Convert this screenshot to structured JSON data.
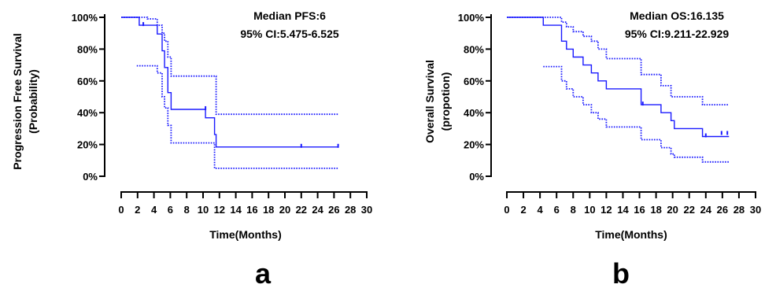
{
  "colors": {
    "curve": "#1a1aff",
    "axis": "#000000",
    "background": "#ffffff"
  },
  "chart_data": [
    {
      "type": "line",
      "panel_label": "a",
      "annotation": [
        "Median PFS:6",
        "95% CI:5.475-6.525"
      ],
      "xlabel": "Time(Months)",
      "ylabel": [
        "Progression Free Survival",
        "(Probability)"
      ],
      "xlim": [
        0,
        30
      ],
      "ylim": [
        0,
        100
      ],
      "x_ticks": [
        0,
        2,
        4,
        6,
        8,
        10,
        12,
        14,
        16,
        18,
        20,
        22,
        24,
        26,
        28,
        30
      ],
      "x_tick_labels": [
        "0",
        "2",
        "4",
        "6",
        "8",
        "10",
        "12",
        "14",
        "16",
        "18",
        "20",
        "22",
        "24",
        "26",
        "28",
        "30"
      ],
      "y_ticks": [
        0,
        20,
        40,
        60,
        80,
        100
      ],
      "y_tick_labels": [
        "0%",
        "20%",
        "40%",
        "60%",
        "80%",
        "100%"
      ],
      "grid": false,
      "series": [
        {
          "role": "survival estimate",
          "style": "solid",
          "x": [
            0,
            2.2,
            4.4,
            5.0,
            5.3,
            5.7,
            6.1,
            10.3,
            11.4,
            11.6,
            26.5
          ],
          "y": [
            100,
            95,
            89.5,
            78.9,
            68.4,
            52.6,
            42.1,
            36.8,
            26.3,
            18.4,
            18.4
          ]
        },
        {
          "role": "upper 95% CI",
          "style": "dotted",
          "x": [
            0,
            3.2,
            4.4,
            5.0,
            5.3,
            5.7,
            6.1,
            10.6,
            11.6,
            26.5
          ],
          "y": [
            100,
            99,
            95,
            90,
            85,
            75,
            63,
            63,
            39,
            39
          ]
        },
        {
          "role": "lower 95% CI",
          "style": "dotted",
          "x": [
            1.9,
            4.4,
            5.0,
            5.3,
            5.7,
            6.1,
            11.4,
            26.5
          ],
          "y": [
            69.5,
            65,
            50,
            43,
            32,
            21,
            5,
            5
          ]
        }
      ],
      "censored": [
        {
          "x": 2.7,
          "y": 95
        },
        {
          "x": 10.3,
          "y": 42.1
        },
        {
          "x": 22.0,
          "y": 18.4
        },
        {
          "x": 26.5,
          "y": 18.4
        }
      ]
    },
    {
      "type": "line",
      "panel_label": "b",
      "annotation": [
        "Median OS:16.135",
        "95% CI:9.211-22.929"
      ],
      "xlabel": "Time(Months)",
      "ylabel": [
        "Overall Survival",
        "(propotion)"
      ],
      "xlim": [
        0,
        30
      ],
      "ylim": [
        0,
        100
      ],
      "x_ticks": [
        0,
        2,
        4,
        6,
        8,
        10,
        12,
        14,
        16,
        18,
        20,
        22,
        24,
        26,
        28,
        30
      ],
      "x_tick_labels": [
        "0",
        "2",
        "4",
        "6",
        "8",
        "10",
        "12",
        "14",
        "16",
        "18",
        "20",
        "22",
        "24",
        "26",
        "28",
        "30"
      ],
      "y_ticks": [
        0,
        20,
        40,
        60,
        80,
        100
      ],
      "y_tick_labels": [
        "0%",
        "20%",
        "40%",
        "60%",
        "80%",
        "100%"
      ],
      "grid": false,
      "series": [
        {
          "role": "survival estimate",
          "style": "solid",
          "x": [
            0,
            4.4,
            6.6,
            7.2,
            8.0,
            9.2,
            10.2,
            11.0,
            12.0,
            13.2,
            16.2,
            17.4,
            18.6,
            19.8,
            20.2,
            23.6,
            26.8
          ],
          "y": [
            100,
            95,
            85,
            80,
            75,
            70,
            65,
            60,
            55,
            55,
            45,
            45,
            40,
            35,
            30,
            25,
            25
          ]
        },
        {
          "role": "upper 95% CI",
          "style": "dotted",
          "x": [
            0,
            4.4,
            6.6,
            7.2,
            8.0,
            9.2,
            10.2,
            11.0,
            12.0,
            13.2,
            16.2,
            17.4,
            18.6,
            19.8,
            20.2,
            23.6,
            26.8
          ],
          "y": [
            100,
            100,
            97,
            94,
            91,
            88,
            85,
            80,
            74,
            74,
            64,
            64,
            57,
            50,
            50,
            45,
            45
          ]
        },
        {
          "role": "lower 95% CI",
          "style": "dotted",
          "x": [
            4.4,
            6.6,
            7.2,
            8.0,
            9.2,
            10.2,
            11.0,
            12.0,
            13.2,
            16.2,
            17.4,
            18.6,
            19.8,
            20.2,
            23.6,
            26.8
          ],
          "y": [
            69,
            60,
            55,
            50,
            45,
            40,
            36,
            31,
            31,
            23,
            23,
            18,
            14,
            12,
            9,
            9
          ]
        }
      ],
      "censored": [
        {
          "x": 16.4,
          "y": 45
        },
        {
          "x": 24.0,
          "y": 25
        },
        {
          "x": 25.9,
          "y": 26.5
        },
        {
          "x": 26.6,
          "y": 26.5
        }
      ]
    }
  ]
}
